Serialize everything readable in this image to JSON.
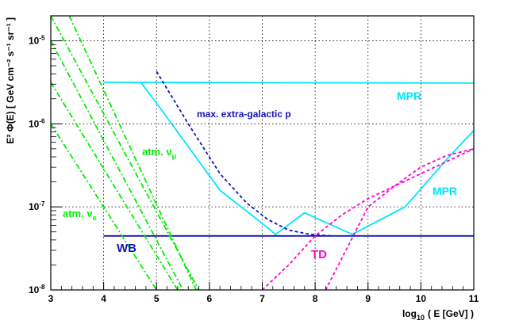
{
  "chart_data": {
    "type": "line",
    "xlabel": "log",
    "xlabel_sub": "10",
    "xlabel_rest": "( E  [GeV] )",
    "ylabel": "E² Φ(E) [ GeV cm⁻² s⁻¹ sr⁻¹ ]",
    "xlim": [
      3,
      11
    ],
    "ylim_log10": [
      -8,
      -4.7
    ],
    "grid": true,
    "x_ticks": [
      "3",
      "4",
      "5",
      "6",
      "7",
      "8",
      "9",
      "10",
      "11"
    ],
    "y_ticks": [
      {
        "base": "10",
        "exp": "-8",
        "log10": -8
      },
      {
        "base": "10",
        "exp": "-7",
        "log10": -7
      },
      {
        "base": "10",
        "exp": "-6",
        "log10": -6
      },
      {
        "base": "10",
        "exp": "-5",
        "log10": -5
      }
    ],
    "colors": {
      "cyan": "#00e5ff",
      "blue": "#1414b4",
      "magenta": "#ff00cc",
      "green": "#00ee00"
    },
    "series": [
      {
        "name": "MPR flat",
        "color": "cyan",
        "dash": "solid",
        "points": [
          [
            4.0,
            -5.5
          ],
          [
            11.0,
            -5.51
          ]
        ]
      },
      {
        "name": "MPR",
        "color": "cyan",
        "dash": "solid",
        "points": [
          [
            4.7,
            -5.5
          ],
          [
            5.0,
            -5.75
          ],
          [
            6.2,
            -6.8
          ],
          [
            7.0,
            -7.2
          ],
          [
            7.25,
            -7.33
          ],
          [
            7.8,
            -7.07
          ],
          [
            8.0,
            -7.13
          ],
          [
            8.7,
            -7.33
          ],
          [
            9.7,
            -7.0
          ],
          [
            10.5,
            -6.42
          ],
          [
            11.0,
            -6.08
          ]
        ]
      },
      {
        "name": "max. extra-galactic p",
        "color": "blue",
        "dash": "dash",
        "points": [
          [
            5.0,
            -5.37
          ],
          [
            5.6,
            -6.0
          ],
          [
            6.2,
            -6.6
          ],
          [
            6.7,
            -6.95
          ],
          [
            7.1,
            -7.15
          ],
          [
            7.5,
            -7.28
          ],
          [
            7.9,
            -7.33
          ],
          [
            8.3,
            -7.35
          ]
        ]
      },
      {
        "name": "WB",
        "color": "blue",
        "dash": "solid",
        "points": [
          [
            4.0,
            -7.35
          ],
          [
            11.0,
            -7.35
          ]
        ]
      },
      {
        "name": "TD curve 1",
        "color": "magenta",
        "dash": "dash",
        "points": [
          [
            7.0,
            -8.0
          ],
          [
            7.5,
            -7.7
          ],
          [
            8.0,
            -7.35
          ],
          [
            8.5,
            -7.1
          ],
          [
            9.0,
            -6.9
          ],
          [
            9.5,
            -6.75
          ],
          [
            10.0,
            -6.6
          ],
          [
            10.5,
            -6.45
          ],
          [
            11.0,
            -6.3
          ]
        ]
      },
      {
        "name": "TD curve 2",
        "color": "magenta",
        "dash": "dash",
        "points": [
          [
            8.2,
            -8.0
          ],
          [
            8.6,
            -7.5
          ],
          [
            9.0,
            -7.0
          ],
          [
            9.5,
            -6.75
          ],
          [
            10.0,
            -6.52
          ],
          [
            10.5,
            -6.38
          ],
          [
            11.0,
            -6.3
          ]
        ]
      },
      {
        "name": "atm nu 1",
        "color": "green",
        "dash": "dashdot",
        "points": [
          [
            3.0,
            -5.5
          ],
          [
            5.4,
            -8.0
          ]
        ]
      },
      {
        "name": "atm nu 2",
        "color": "green",
        "dash": "dashdot",
        "points": [
          [
            3.0,
            -6.0
          ],
          [
            5.0,
            -8.0
          ]
        ]
      },
      {
        "name": "atm nu 3",
        "color": "green",
        "dash": "dashdot",
        "points": [
          [
            3.0,
            -4.7
          ],
          [
            5.8,
            -8.0
          ]
        ]
      },
      {
        "name": "atm nu 4",
        "color": "green",
        "dash": "dashdot",
        "points": [
          [
            3.35,
            -4.7
          ],
          [
            5.75,
            -8.0
          ]
        ]
      },
      {
        "name": "atm nu 5",
        "color": "green",
        "dash": "dashdot",
        "points": [
          [
            3.0,
            -5.0
          ],
          [
            5.5,
            -8.0
          ]
        ]
      }
    ],
    "annotations": {
      "mpr_top": {
        "text": "MPR",
        "color": "cyan"
      },
      "mpr_right": {
        "text": "MPR",
        "color": "cyan"
      },
      "extragal": {
        "text": "max. extra-galactic p",
        "color": "blue"
      },
      "atm_mu": {
        "text": "atm. ν",
        "sub": "μ",
        "color": "green"
      },
      "atm_e": {
        "text": "atm. ν",
        "sub": "e",
        "color": "green"
      },
      "wb": {
        "text": "WB",
        "color": "blue"
      },
      "td": {
        "text": "TD",
        "color": "magenta"
      }
    }
  }
}
